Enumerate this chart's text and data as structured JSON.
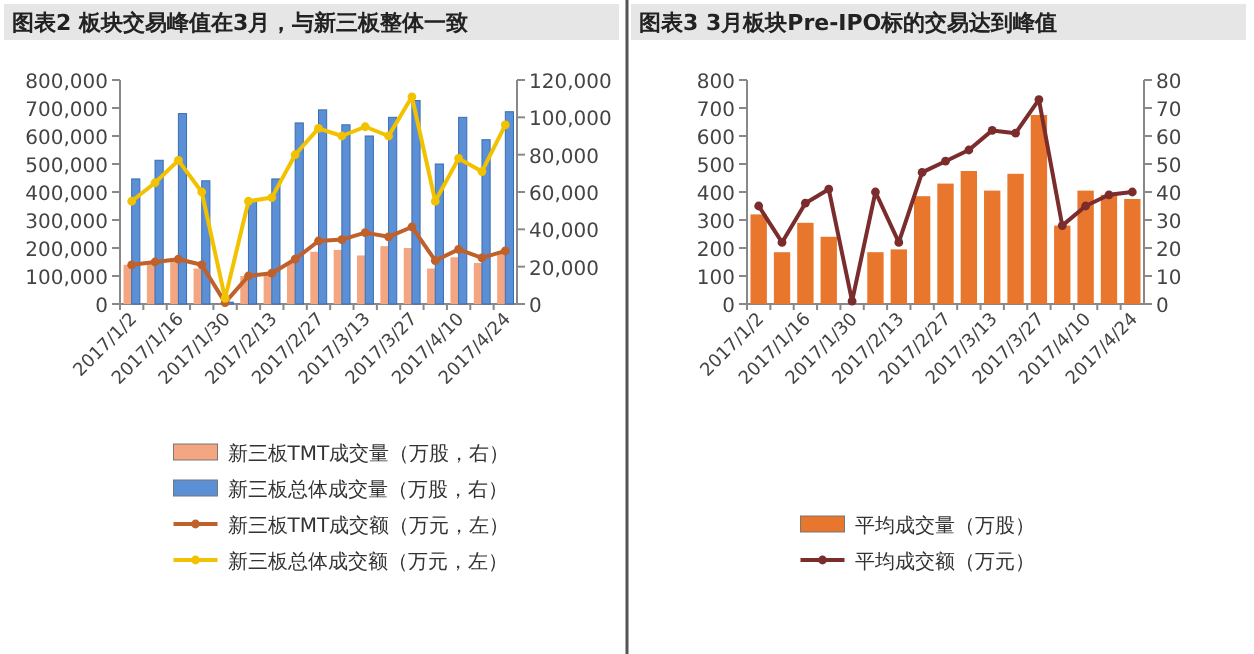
{
  "chart_data": [
    {
      "type": "bar",
      "title": "图表2  板块交易峰值在3月，与新三板整体一致",
      "categories": [
        "2017/1/2",
        null,
        "2017/1/16",
        null,
        "2017/1/30",
        null,
        "2017/2/13",
        null,
        "2017/2/27",
        null,
        "2017/3/13",
        null,
        "2017/3/27",
        null,
        "2017/4/10",
        null,
        "2017/4/24"
      ],
      "series": [
        {
          "name": "新三板TMT成交量（万股，右）",
          "axis": "y2",
          "color": "#f4a582",
          "values": [
            21000,
            22000,
            23000,
            19000,
            0,
            15000,
            16000,
            22000,
            28000,
            29000,
            26000,
            31000,
            30000,
            19000,
            25000,
            22000,
            27000
          ]
        },
        {
          "name": "新三板总体成交量（万股，右）",
          "axis": "y2",
          "color": "#5b8fd6",
          "values": [
            67000,
            77000,
            102000,
            66000,
            1000,
            56000,
            67000,
            97000,
            104000,
            96000,
            90000,
            100000,
            109000,
            75000,
            100000,
            88000,
            103000
          ]
        },
        {
          "name": "新三板TMT成交额（万元，左）",
          "type": "line",
          "color": "#c0602a",
          "values": [
            140000,
            150000,
            160000,
            140000,
            5000,
            100000,
            110000,
            160000,
            225000,
            230000,
            255000,
            240000,
            275000,
            155000,
            195000,
            165000,
            190000
          ]
        },
        {
          "name": "新三板总体成交额（万元，左）",
          "type": "line",
          "color": "#f2c200",
          "values": [
            367000,
            433000,
            513000,
            400000,
            20000,
            367000,
            380000,
            533000,
            627000,
            600000,
            633000,
            600000,
            740000,
            367000,
            520000,
            473000,
            640000
          ]
        }
      ],
      "ylim": [
        0,
        800000
      ],
      "yticks": [
        0,
        {
          "value": 100000,
          "label": "100,000"
        },
        {
          "value": 200000,
          "label": "200,000"
        },
        {
          "value": 300000,
          "label": "300,000"
        },
        {
          "value": 400000,
          "label": "400,000"
        },
        {
          "value": 500000,
          "label": "500,000"
        },
        {
          "value": 600000,
          "label": "600,000"
        },
        {
          "value": 700000,
          "label": "700,000"
        },
        {
          "value": 800000,
          "label": "800,000"
        }
      ],
      "y2lim": [
        0,
        120000
      ],
      "y2ticks": [
        0,
        {
          "value": 20000,
          "label": "20,000"
        },
        {
          "value": 40000,
          "label": "40,000"
        },
        {
          "value": 60000,
          "label": "60,000"
        },
        {
          "value": 80000,
          "label": "80,000"
        },
        {
          "value": 100000,
          "label": "100,000"
        },
        {
          "value": 120000,
          "label": "120,000"
        }
      ],
      "marker": "circle",
      "legend": "bottom"
    },
    {
      "type": "bar",
      "title": "图表3  3月板块Pre-IPO标的交易达到峰值",
      "categories": [
        "2017/1/2",
        null,
        "2017/1/16",
        null,
        "2017/1/30",
        null,
        "2017/2/13",
        null,
        "2017/2/27",
        null,
        "2017/3/13",
        null,
        "2017/3/27",
        null,
        "2017/4/10",
        null,
        "2017/4/24"
      ],
      "series": [
        {
          "name": "平均成交量（万股）",
          "color": "#e8762c",
          "values": [
            320,
            185,
            290,
            240,
            null,
            185,
            195,
            385,
            430,
            475,
            405,
            465,
            675,
            280,
            405,
            390,
            375
          ]
        },
        {
          "name": "平均成交额（万元）",
          "type": "line",
          "axis": "y2",
          "color": "#7b2c2c",
          "values": [
            35,
            22,
            36,
            41,
            1,
            40,
            22,
            47,
            51,
            55,
            62,
            61,
            73,
            28,
            35,
            39,
            40
          ]
        }
      ],
      "ylim": [
        0,
        800
      ],
      "yticks": [
        0,
        100,
        200,
        300,
        400,
        500,
        600,
        700,
        800
      ],
      "y2lim": [
        0,
        80
      ],
      "y2ticks": [
        0,
        10,
        20,
        30,
        40,
        50,
        60,
        70,
        80
      ],
      "marker": "circle",
      "legend": "bottom"
    }
  ]
}
